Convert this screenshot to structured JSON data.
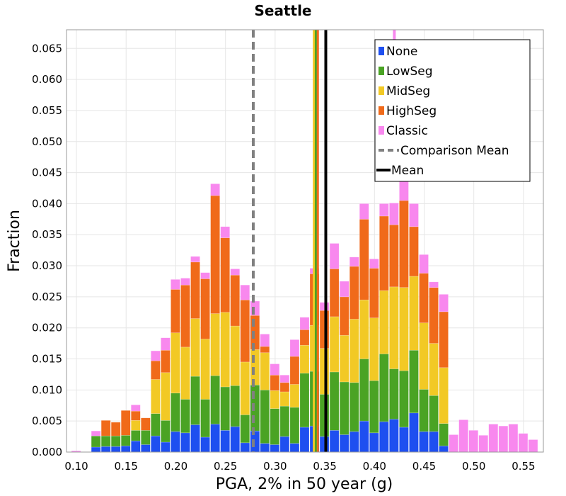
{
  "chart_data": {
    "type": "bar",
    "subtype": "stacked-histogram",
    "title": "Seattle",
    "xlabel": "PGA, 2% in 50 year (g)",
    "ylabel": "Fraction",
    "xlim": [
      0.09,
      0.57
    ],
    "ylim": [
      0,
      0.068
    ],
    "xticks": [
      "0.10",
      "0.15",
      "0.20",
      "0.25",
      "0.30",
      "0.35",
      "0.40",
      "0.45",
      "0.50",
      "0.55"
    ],
    "yticks": [
      "0.000",
      "0.005",
      "0.010",
      "0.015",
      "0.020",
      "0.025",
      "0.030",
      "0.035",
      "0.040",
      "0.045",
      "0.050",
      "0.055",
      "0.060",
      "0.065"
    ],
    "grid": true,
    "legend_position": "top-right",
    "bin_width": 0.01,
    "x": [
      0.1,
      0.11,
      0.12,
      0.13,
      0.14,
      0.15,
      0.16,
      0.17,
      0.18,
      0.19,
      0.2,
      0.21,
      0.22,
      0.23,
      0.24,
      0.25,
      0.26,
      0.27,
      0.28,
      0.29,
      0.3,
      0.31,
      0.32,
      0.33,
      0.34,
      0.35,
      0.36,
      0.37,
      0.38,
      0.39,
      0.4,
      0.41,
      0.42,
      0.43,
      0.44,
      0.45,
      0.46,
      0.47,
      0.48,
      0.49,
      0.5,
      0.51,
      0.52,
      0.53,
      0.54,
      0.55,
      0.56
    ],
    "series": [
      {
        "name": "None",
        "color": "#1e4ff0",
        "values": [
          0,
          0,
          0.0008,
          0.0009,
          0.0009,
          0.001,
          0.0018,
          0.0012,
          0.0026,
          0.0016,
          0.0033,
          0.0031,
          0.0044,
          0.0024,
          0.0045,
          0.0035,
          0.0041,
          0.0015,
          0.0034,
          0.0014,
          0.0012,
          0.0025,
          0.0014,
          0.004,
          0.0042,
          0.0025,
          0.0035,
          0.0028,
          0.0033,
          0.005,
          0.0031,
          0.0049,
          0.0053,
          0.004,
          0.0063,
          0.0033,
          0.0033,
          0.001,
          0,
          0,
          0,
          0,
          0,
          0,
          0,
          0,
          0
        ]
      },
      {
        "name": "LowSeg",
        "color": "#4aa324",
        "values": [
          0,
          0,
          0.0018,
          0.0017,
          0.0017,
          0.0017,
          0.0017,
          0.0023,
          0.0036,
          0.0035,
          0.0062,
          0.0054,
          0.0078,
          0.0061,
          0.0078,
          0.007,
          0.0066,
          0.0045,
          0.0074,
          0.0086,
          0.0058,
          0.0049,
          0.0058,
          0.0087,
          0.0088,
          0.0068,
          0.0094,
          0.0085,
          0.0079,
          0.01,
          0.0084,
          0.0109,
          0.0081,
          0.0091,
          0.0101,
          0.0068,
          0.0058,
          0.0036,
          0,
          0,
          0,
          0,
          0,
          0,
          0,
          0,
          0
        ]
      },
      {
        "name": "MidSeg",
        "color": "#f2c925",
        "values": [
          0,
          0,
          0,
          0,
          0,
          0,
          0.0016,
          0,
          0.0055,
          0.0077,
          0.0097,
          0.0084,
          0.0093,
          0.0097,
          0.01,
          0.012,
          0.0096,
          0.0085,
          0.0057,
          0.006,
          0.0029,
          0.0023,
          0.0037,
          0.0045,
          0.0074,
          0.0074,
          0.0089,
          0.0075,
          0.0102,
          0.0095,
          0.0101,
          0.0102,
          0.0132,
          0.0134,
          0.0119,
          0.0107,
          0.0084,
          0.009,
          0,
          0,
          0,
          0,
          0,
          0,
          0,
          0,
          0
        ]
      },
      {
        "name": "HighSeg",
        "color": "#f06a1a",
        "values": [
          0,
          0,
          0,
          0.0025,
          0.0022,
          0.004,
          0.0015,
          0.002,
          0.003,
          0.0036,
          0.007,
          0.01,
          0.0091,
          0.0097,
          0.019,
          0.012,
          0.0082,
          0.01,
          0.0055,
          0.001,
          0.0025,
          0.0015,
          0.0045,
          0.0025,
          0.0083,
          0.0061,
          0.0077,
          0.0062,
          0.0085,
          0.013,
          0.008,
          0.012,
          0.01,
          0.014,
          0.008,
          0.008,
          0.009,
          0.009,
          0,
          0,
          0,
          0,
          0,
          0,
          0,
          0,
          0
        ]
      },
      {
        "name": "Classic",
        "color": "#f888ee",
        "values": [
          0.0002,
          0,
          0.0008,
          0,
          0,
          0,
          0.001,
          0,
          0.0016,
          0.002,
          0.0016,
          0.0011,
          0.0009,
          0.001,
          0.0019,
          0.0018,
          0.001,
          0.0024,
          0.0023,
          0.002,
          0.0018,
          0.0012,
          0.0027,
          0.002,
          0.0009,
          0.0013,
          0.0041,
          0.0025,
          0.0015,
          0.0025,
          0.0015,
          0.002,
          0.0035,
          0.0035,
          0.0037,
          0.003,
          0.0009,
          0.0028,
          0.0028,
          0.0052,
          0.0035,
          0.0027,
          0.0045,
          0.0042,
          0.0045,
          0.003,
          0.002
        ]
      }
    ],
    "overflow_spikes": [
      {
        "name": "Classic",
        "x": 0.42
      }
    ],
    "mean_lines": [
      {
        "series": "MidSeg",
        "x": 0.339,
        "color": "#f2c925"
      },
      {
        "series": "LowSeg",
        "x": 0.341,
        "color": "#4aa324"
      },
      {
        "series": "HighSeg",
        "x": 0.343,
        "color": "#f06a1a"
      }
    ],
    "comparison_mean": {
      "label": "Comparison Mean",
      "x": 0.278,
      "color": "#808080",
      "style": "dashed"
    },
    "mean": {
      "label": "Mean",
      "x": 0.351,
      "color": "#000000",
      "style": "solid"
    },
    "legend": [
      "None",
      "LowSeg",
      "MidSeg",
      "HighSeg",
      "Classic",
      "Comparison Mean",
      "Mean"
    ]
  }
}
